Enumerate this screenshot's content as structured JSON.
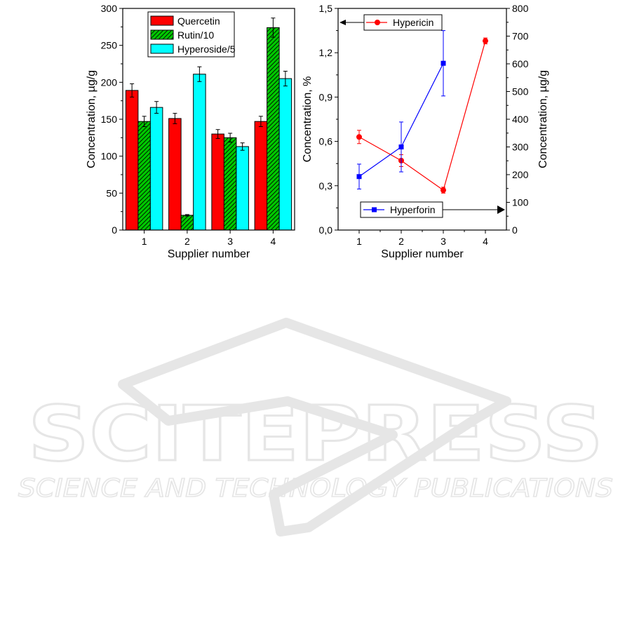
{
  "chart_data": [
    {
      "type": "bar",
      "xlabel": "Supplier number",
      "ylabel": "Concentration, µg/g",
      "ylim": [
        0,
        300
      ],
      "yticks": [
        0,
        50,
        100,
        150,
        200,
        250,
        300
      ],
      "categories": [
        "1",
        "2",
        "3",
        "4"
      ],
      "legend_position": "top-center",
      "series": [
        {
          "name": "Quercetin",
          "color": "#ff0000",
          "pattern": "solid",
          "values": [
            189,
            151,
            130,
            147
          ],
          "errors": [
            9,
            7,
            6,
            7
          ]
        },
        {
          "name": "Rutin/10",
          "color": "#00c800",
          "pattern": "hatched",
          "values": [
            147,
            20,
            125,
            274
          ],
          "errors": [
            7,
            1,
            6,
            13
          ]
        },
        {
          "name": "Hyperoside/5",
          "color": "#00ffff",
          "pattern": "solid",
          "values": [
            166,
            211,
            113,
            205
          ],
          "errors": [
            8,
            10,
            5,
            10
          ]
        }
      ]
    },
    {
      "type": "line",
      "xlabel": "Supplier number",
      "ylabel_left": "Concentration, %",
      "ylabel_right": "Concentration, µg/g",
      "ylim_left": [
        0,
        1.5
      ],
      "ylim_right": [
        0,
        800
      ],
      "yticks_left": [
        "0,0",
        "0,3",
        "0,6",
        "0,9",
        "1,2",
        "1,5"
      ],
      "yticks_right": [
        "0",
        "100",
        "200",
        "300",
        "400",
        "500",
        "600",
        "700",
        "800"
      ],
      "x": [
        1,
        2,
        3,
        4
      ],
      "xlim": [
        0.5,
        4.5
      ],
      "series": [
        {
          "name": "Hypericin",
          "axis": "left",
          "color": "#ff0000",
          "marker": "circle",
          "x": [
            1,
            2,
            3,
            4
          ],
          "values": [
            0.63,
            0.47,
            0.27,
            1.28
          ],
          "errors": [
            0.045,
            0.04,
            0.02,
            0.02
          ],
          "legend_position": "top-left"
        },
        {
          "name": "Hyperforin",
          "axis": "right",
          "color": "#0000ff",
          "marker": "square",
          "x": [
            1,
            2,
            3
          ],
          "values": [
            193,
            300,
            602
          ],
          "errors": [
            45,
            90,
            118
          ],
          "legend_position": "bottom-right"
        }
      ]
    }
  ],
  "watermark": {
    "title": "SCITEPRESS",
    "subtitle": "SCIENCE AND TECHNOLOGY PUBLICATIONS",
    "color": "#e6e6e6"
  }
}
